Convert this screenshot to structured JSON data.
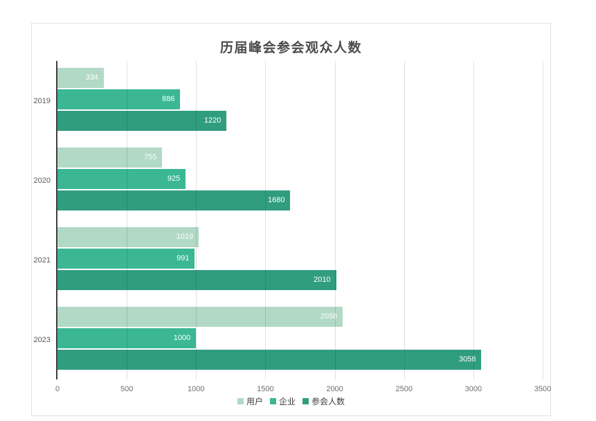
{
  "chart_data": {
    "type": "bar",
    "orientation": "horizontal",
    "title": "历届峰会参会观众人数",
    "categories": [
      "2019",
      "2020",
      "2021",
      "2023"
    ],
    "series": [
      {
        "name": "用户",
        "color": "#b1d9c6",
        "values": [
          334,
          755,
          1019,
          2058
        ]
      },
      {
        "name": "企业",
        "color": "#3bb794",
        "values": [
          886,
          925,
          991,
          1000
        ]
      },
      {
        "name": "参会人数",
        "color": "#319d80",
        "values": [
          1220,
          1680,
          2010,
          3058
        ]
      }
    ],
    "xlim": [
      0,
      3500
    ],
    "x_ticks": [
      0,
      500,
      1000,
      1500,
      2000,
      2500,
      3000,
      3500
    ],
    "grid": true,
    "legend_position": "bottom",
    "value_labels": "inside-end",
    "value_label_color": "#ffffff",
    "axis_line_color": "#3f3f3f",
    "gridline_color": "#e0e0e0",
    "title_color": "#4b4b4b"
  }
}
